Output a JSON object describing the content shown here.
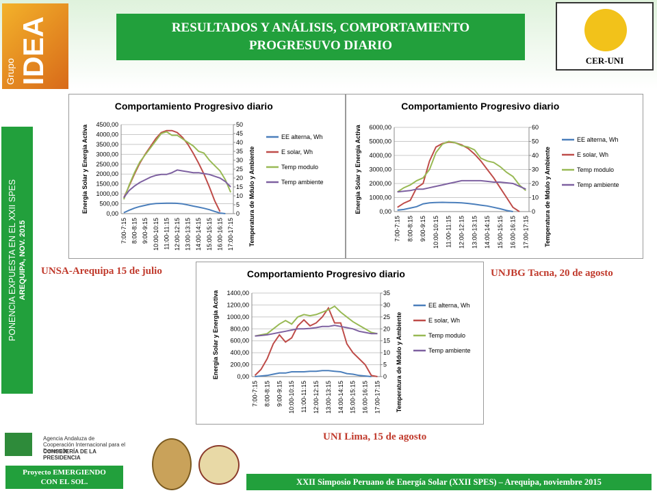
{
  "slide": {
    "title_lines": [
      "RESULTADOS Y ANÁLISIS, COMPORTAMIENTO",
      "PROGRESUVO DIARIO"
    ],
    "logo_left": [
      "Grupo",
      "IDEA"
    ],
    "logo_right": "CER-UNI",
    "side_lines": [
      "PONENCIA EXPUESTA EN EL XXII SPES",
      "AREQUIPA, NOV. 2015"
    ],
    "captions": [
      "UNSA-Arequipa 15 de julio",
      "UNJBG Tacna, 20 de agosto",
      "UNI Lima, 15 de agosto"
    ],
    "agency_lines": [
      "Agencia Andaluza de",
      "Cooperación Internacional para el Desarrollo",
      "CONSEJERÍA DE LA PRESIDENCIA"
    ],
    "project_lines": [
      "Proyecto EMERGIENDO",
      "CON EL SOL."
    ],
    "footer": "XXII Simposio Peruano de Energía Solar (XXII SPES) – Arequipa, noviembre 2015"
  },
  "chart_data": [
    {
      "type": "line",
      "title": "Comportamiento Progresivo diario",
      "y_label": "Energia Solar y Energia Activa",
      "y2_label": "Temperatura de Mdulo y Ambiente",
      "categories": [
        "7:00-7:15",
        null,
        "8:00-8:15",
        null,
        "9:00-9:15",
        null,
        "10:00-10:15",
        null,
        "11:00-11:15",
        null,
        "12:00-12:15",
        null,
        "13:00-13:15",
        null,
        "14:00-14:15",
        null,
        "15:00-15:15",
        null,
        "16:00-16:15",
        null,
        "17:00-17:15"
      ],
      "ylim": [
        0,
        4500
      ],
      "yticks": [
        {
          "value": 0,
          "label": "0,00"
        },
        {
          "value": 500,
          "label": "500,00"
        },
        {
          "value": 1000,
          "label": "1000,00"
        },
        {
          "value": 1500,
          "label": "1500,00"
        },
        {
          "value": 2000,
          "label": "2000,00"
        },
        {
          "value": 2500,
          "label": "2500,00"
        },
        {
          "value": 3000,
          "label": "3000,00"
        },
        {
          "value": 3500,
          "label": "3500,00"
        },
        {
          "value": 4000,
          "label": "4000,00"
        },
        {
          "value": 4500,
          "label": "4500,00"
        }
      ],
      "y2lim": [
        0,
        50
      ],
      "y2ticks": [
        0,
        5,
        10,
        15,
        20,
        25,
        30,
        35,
        40,
        45,
        50
      ],
      "grid": true,
      "legend": "right",
      "series": [
        {
          "name": "EE alterna, Wh",
          "color": "#4a7ebb",
          "values": [
            50,
            170,
            280,
            360,
            420,
            480,
            510,
            520,
            530,
            530,
            520,
            490,
            440,
            380,
            330,
            270,
            200,
            110,
            30,
            0,
            null
          ]
        },
        {
          "name": "E solar, Wh",
          "color": "#be4b48",
          "values": [
            800,
            1400,
            2000,
            2550,
            3000,
            3400,
            3800,
            4100,
            4200,
            4200,
            4100,
            3850,
            3500,
            3050,
            2550,
            2000,
            1350,
            650,
            100,
            null,
            null
          ]
        },
        {
          "name": "Temp modulo",
          "color": "#98b954",
          "axis": "y2",
          "values": [
            8,
            16,
            23,
            29,
            33,
            37,
            41,
            45,
            46,
            44,
            44,
            42,
            40,
            38,
            35,
            34,
            30,
            27,
            24,
            19,
            12
          ]
        },
        {
          "name": "Temp ambiente",
          "color": "#7d60a0",
          "axis": "y2",
          "values": [
            9,
            13,
            15.5,
            17.5,
            19,
            20.5,
            21.5,
            22,
            22,
            23,
            24.5,
            24,
            23.5,
            23,
            23,
            22.5,
            22,
            21,
            20,
            18,
            15
          ]
        }
      ]
    },
    {
      "type": "line",
      "title": "Comportamiento Progresivo diario",
      "y_label": "Energia Solar y Energia Activa",
      "y2_label": "Temperatura de Mdulo y Ambiente",
      "categories": [
        "7:00-7:15",
        null,
        "8:00-8:15",
        null,
        "9:00-9:15",
        null,
        "10:00-10:15",
        null,
        "11:00-11:15",
        null,
        "12:00-12:15",
        null,
        "13:00-13:15",
        null,
        "14:00-14:15",
        null,
        "15:00-15:15",
        null,
        "16:00-16:15",
        null,
        "17:00-17:15"
      ],
      "ylim": [
        0,
        6000
      ],
      "yticks": [
        {
          "value": 0,
          "label": "0,00"
        },
        {
          "value": 1000,
          "label": "1000,00"
        },
        {
          "value": 2000,
          "label": "2000,00"
        },
        {
          "value": 3000,
          "label": "3000,00"
        },
        {
          "value": 4000,
          "label": "4000,00"
        },
        {
          "value": 5000,
          "label": "5000,00"
        },
        {
          "value": 6000,
          "label": "6000,00"
        }
      ],
      "y2lim": [
        0,
        60
      ],
      "y2ticks": [
        0,
        10,
        20,
        30,
        40,
        50,
        60
      ],
      "grid": true,
      "legend": "right",
      "series": [
        {
          "name": "EE alterna, Wh",
          "color": "#4a7ebb",
          "values": [
            100,
            150,
            250,
            350,
            550,
            620,
            650,
            660,
            650,
            640,
            620,
            580,
            520,
            460,
            400,
            300,
            200,
            80,
            0,
            null,
            null
          ]
        },
        {
          "name": "E solar, Wh",
          "color": "#be4b48",
          "values": [
            300,
            600,
            800,
            1700,
            2000,
            3600,
            4600,
            4850,
            4950,
            4900,
            4750,
            4500,
            4100,
            3600,
            3000,
            2400,
            1700,
            1000,
            300,
            0,
            null
          ]
        },
        {
          "name": "Temp modulo",
          "color": "#98b954",
          "axis": "y2",
          "values": [
            14,
            17,
            19,
            22,
            24,
            30,
            42,
            48,
            50,
            49,
            47,
            46,
            44,
            38,
            36,
            35,
            32,
            28,
            25,
            19,
            15
          ]
        },
        {
          "name": "Temp ambiente",
          "color": "#7d60a0",
          "axis": "y2",
          "values": [
            14,
            14.5,
            15,
            16,
            16,
            17,
            18,
            19,
            20,
            21,
            22,
            22,
            22,
            22,
            21.5,
            21,
            21,
            20.5,
            20,
            18,
            16
          ]
        }
      ]
    },
    {
      "type": "line",
      "title": "Comportamiento Progresivo diario",
      "y_label": "Energia Solar y Energia Activa",
      "y2_label": "Temperatura de Mdulo y Ambiente",
      "categories": [
        "7:00-7:15",
        null,
        "8:00-8:15",
        null,
        "9:00-9:15",
        null,
        "10:00-10:15",
        null,
        "11:00-11:15",
        null,
        "12:00-12:15",
        null,
        "13:00-13:15",
        null,
        "14:00-14:15",
        null,
        "15:00-15:15",
        null,
        "16:00-16:15",
        null,
        "17:00-17:15"
      ],
      "ylim": [
        0,
        1400
      ],
      "yticks": [
        {
          "value": 0,
          "label": "0,00"
        },
        {
          "value": 200,
          "label": "200,00"
        },
        {
          "value": 400,
          "label": "400,00"
        },
        {
          "value": 600,
          "label": "600,00"
        },
        {
          "value": 800,
          "label": "800,00"
        },
        {
          "value": 1000,
          "label": "1000,00"
        },
        {
          "value": 1200,
          "label": "1200,00"
        },
        {
          "value": 1400,
          "label": "1400,00"
        }
      ],
      "y2lim": [
        0,
        35
      ],
      "y2ticks": [
        0,
        5,
        10,
        15,
        20,
        25,
        30,
        35
      ],
      "grid": true,
      "legend": "right",
      "series": [
        {
          "name": "EE alterna, Wh",
          "color": "#4a7ebb",
          "values": [
            0,
            10,
            20,
            40,
            60,
            60,
            80,
            80,
            80,
            90,
            90,
            100,
            100,
            90,
            80,
            50,
            40,
            20,
            10,
            0,
            null
          ]
        },
        {
          "name": "E solar, Wh",
          "color": "#be4b48",
          "values": [
            20,
            120,
            300,
            550,
            700,
            580,
            650,
            850,
            950,
            850,
            900,
            1000,
            1150,
            900,
            900,
            550,
            400,
            300,
            200,
            20,
            0
          ]
        },
        {
          "name": "Temp modulo",
          "color": "#98b954",
          "axis": "y2",
          "values": [
            17,
            17.5,
            18,
            20,
            22,
            23.5,
            22,
            25,
            26,
            25.5,
            26,
            27,
            28,
            29.5,
            27,
            25,
            23,
            21.5,
            20,
            18.5,
            18
          ]
        },
        {
          "name": "Temp ambiente",
          "color": "#7d60a0",
          "axis": "y2",
          "values": [
            17,
            17.2,
            17.5,
            18,
            18.5,
            19,
            19.5,
            20,
            20,
            20.2,
            20.5,
            21,
            21,
            21.5,
            21,
            20.5,
            20,
            19,
            18.5,
            18,
            18
          ]
        }
      ]
    }
  ]
}
